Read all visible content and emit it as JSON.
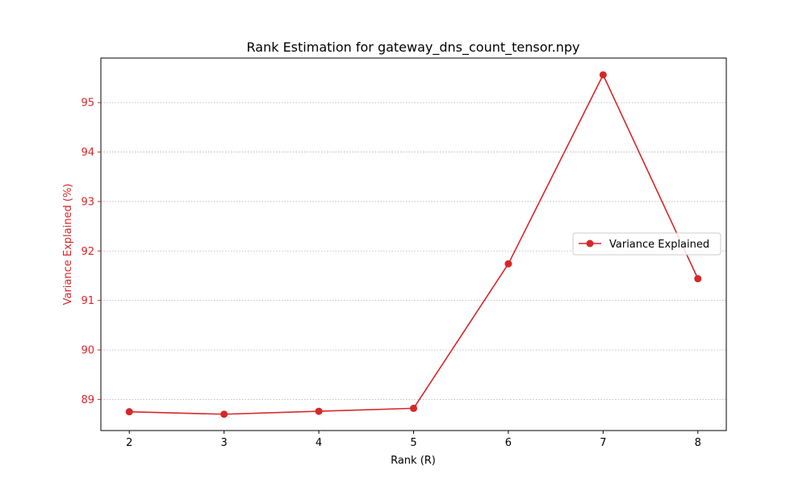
{
  "chart_data": {
    "type": "line",
    "title": "Rank Estimation for gateway_dns_count_tensor.npy",
    "xlabel": "Rank (R)",
    "ylabel": "Variance Explained (%)",
    "x": [
      2,
      3,
      4,
      5,
      6,
      7,
      8
    ],
    "xticks": [
      "2",
      "3",
      "4",
      "5",
      "6",
      "7",
      "8"
    ],
    "xlim": [
      1.7,
      8.3
    ],
    "yticks": [
      "89",
      "90",
      "91",
      "92",
      "93",
      "94",
      "95"
    ],
    "ylim": [
      88.37,
      95.9
    ],
    "grid": "y-dotted",
    "legend_placement": "center-right",
    "series": [
      {
        "name": "Variance Explained",
        "color": "#d62728",
        "marker": "circle",
        "values": [
          88.75,
          88.7,
          88.76,
          88.82,
          91.74,
          95.56,
          91.44
        ]
      }
    ]
  }
}
